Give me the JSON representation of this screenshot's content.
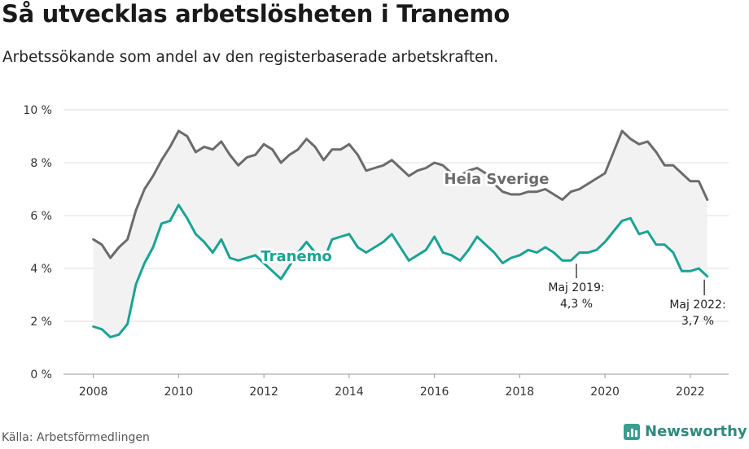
{
  "title": "Så utvecklas arbetslösheten i Tranemo",
  "subtitle": "Arbetssökande som andel av den registerbaserade arbetskraften.",
  "source": "Källa: Arbetsförmedlingen",
  "brand": "Newsworthy",
  "colors": {
    "sweden": "#6b6b6b",
    "tranemo": "#1aa393",
    "band": "#f2f2f2",
    "grid": "#dcdcdc",
    "brand": "#2f8a7d"
  },
  "chart_data": {
    "type": "line",
    "x_ticks": [
      "2008",
      "2010",
      "2012",
      "2014",
      "2016",
      "2018",
      "2020",
      "2022"
    ],
    "y_ticks": [
      "0 %",
      "2 %",
      "4 %",
      "6 %",
      "8 %",
      "10 %"
    ],
    "ylim": [
      0,
      10
    ],
    "xlim": [
      2007.3,
      2022.9
    ],
    "grid": "horizontal",
    "series": [
      {
        "name": "Hela Sverige",
        "color": "#6b6b6b",
        "x": [
          2008.0,
          2008.2,
          2008.4,
          2008.6,
          2008.8,
          2009.0,
          2009.2,
          2009.4,
          2009.6,
          2009.8,
          2010.0,
          2010.2,
          2010.4,
          2010.6,
          2010.8,
          2011.0,
          2011.2,
          2011.4,
          2011.6,
          2011.8,
          2012.0,
          2012.2,
          2012.4,
          2012.6,
          2012.8,
          2013.0,
          2013.2,
          2013.4,
          2013.6,
          2013.8,
          2014.0,
          2014.2,
          2014.4,
          2014.6,
          2014.8,
          2015.0,
          2015.2,
          2015.4,
          2015.6,
          2015.8,
          2016.0,
          2016.2,
          2016.4,
          2016.6,
          2016.8,
          2017.0,
          2017.2,
          2017.4,
          2017.6,
          2017.8,
          2018.0,
          2018.2,
          2018.4,
          2018.6,
          2018.8,
          2019.0,
          2019.2,
          2019.4,
          2019.6,
          2019.8,
          2020.0,
          2020.2,
          2020.4,
          2020.6,
          2020.8,
          2021.0,
          2021.2,
          2021.4,
          2021.6,
          2021.8,
          2022.0,
          2022.2,
          2022.4
        ],
        "values": [
          5.1,
          4.9,
          4.4,
          4.8,
          5.1,
          6.2,
          7.0,
          7.5,
          8.1,
          8.6,
          9.2,
          9.0,
          8.4,
          8.6,
          8.5,
          8.8,
          8.3,
          7.9,
          8.2,
          8.3,
          8.7,
          8.5,
          8.0,
          8.3,
          8.5,
          8.9,
          8.6,
          8.1,
          8.5,
          8.5,
          8.7,
          8.3,
          7.7,
          7.8,
          7.9,
          8.1,
          7.8,
          7.5,
          7.7,
          7.8,
          8.0,
          7.9,
          7.6,
          7.5,
          7.7,
          7.8,
          7.6,
          7.2,
          6.9,
          6.8,
          6.8,
          6.9,
          6.9,
          7.0,
          6.8,
          6.6,
          6.9,
          7.0,
          7.2,
          7.4,
          7.6,
          8.4,
          9.2,
          8.9,
          8.7,
          8.8,
          8.4,
          7.9,
          7.9,
          7.6,
          7.3,
          7.3,
          6.6
        ]
      },
      {
        "name": "Tranemo",
        "color": "#1aa393",
        "x": [
          2008.0,
          2008.2,
          2008.4,
          2008.6,
          2008.8,
          2009.0,
          2009.2,
          2009.4,
          2009.6,
          2009.8,
          2010.0,
          2010.2,
          2010.4,
          2010.6,
          2010.8,
          2011.0,
          2011.2,
          2011.4,
          2011.6,
          2011.8,
          2012.0,
          2012.2,
          2012.4,
          2012.6,
          2012.8,
          2013.0,
          2013.2,
          2013.4,
          2013.6,
          2013.8,
          2014.0,
          2014.2,
          2014.4,
          2014.6,
          2014.8,
          2015.0,
          2015.2,
          2015.4,
          2015.6,
          2015.8,
          2016.0,
          2016.2,
          2016.4,
          2016.6,
          2016.8,
          2017.0,
          2017.2,
          2017.4,
          2017.6,
          2017.8,
          2018.0,
          2018.2,
          2018.4,
          2018.6,
          2018.8,
          2019.0,
          2019.2,
          2019.4,
          2019.6,
          2019.8,
          2020.0,
          2020.2,
          2020.4,
          2020.6,
          2020.8,
          2021.0,
          2021.2,
          2021.4,
          2021.6,
          2021.8,
          2022.0,
          2022.2,
          2022.4
        ],
        "values": [
          1.8,
          1.7,
          1.4,
          1.5,
          1.9,
          3.4,
          4.2,
          4.8,
          5.7,
          5.8,
          6.4,
          5.9,
          5.3,
          5.0,
          4.6,
          5.1,
          4.4,
          4.3,
          4.4,
          4.5,
          4.2,
          3.9,
          3.6,
          4.1,
          4.6,
          5.0,
          4.6,
          4.3,
          5.1,
          5.2,
          5.3,
          4.8,
          4.6,
          4.8,
          5.0,
          5.3,
          4.8,
          4.3,
          4.5,
          4.7,
          5.2,
          4.6,
          4.5,
          4.3,
          4.7,
          5.2,
          4.9,
          4.6,
          4.2,
          4.4,
          4.5,
          4.7,
          4.6,
          4.8,
          4.6,
          4.3,
          4.3,
          4.6,
          4.6,
          4.7,
          5.0,
          5.4,
          5.8,
          5.9,
          5.3,
          5.4,
          4.9,
          4.9,
          4.6,
          3.9,
          3.9,
          4.0,
          3.7
        ]
      }
    ],
    "series_labels": [
      "Hela Sverige",
      "Tranemo"
    ],
    "annotations": [
      {
        "x": 2019.33,
        "y": 4.3,
        "line1": "Maj 2019:",
        "line2": "4,3 %"
      },
      {
        "x": 2022.33,
        "y": 3.7,
        "line1": "Maj 2022:",
        "line2": "3,7 %"
      }
    ]
  }
}
